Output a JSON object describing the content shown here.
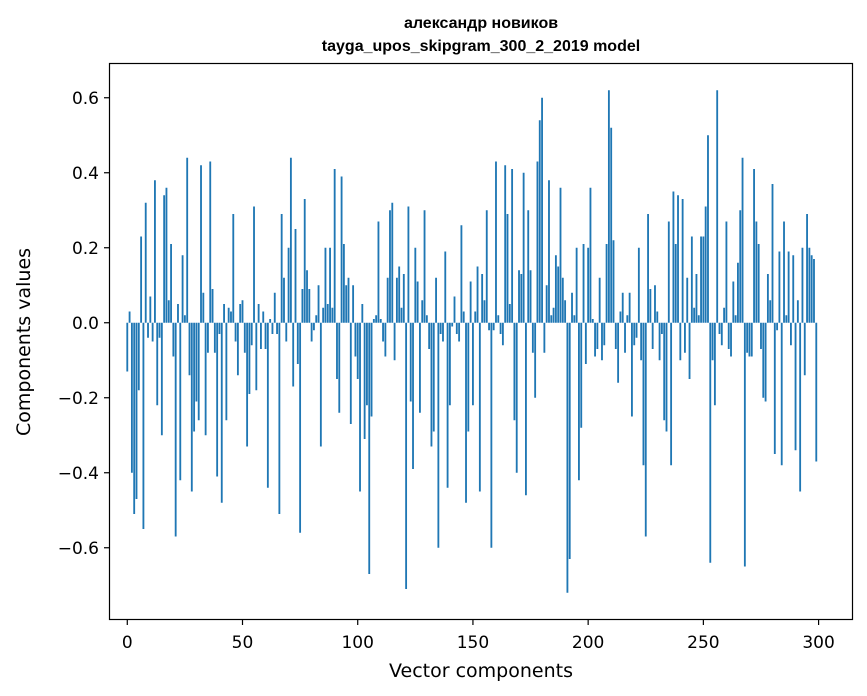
{
  "chart_data": {
    "type": "bar",
    "title_line1": "александр новиков",
    "title_line2": "tayga_upos_skipgram_300_2_2019 model",
    "xlabel": "Vector components",
    "ylabel": "Components values",
    "xlim": [
      -7.5,
      314.5
    ],
    "ylim": [
      -0.79,
      0.69
    ],
    "x_ticks": [
      0,
      50,
      100,
      150,
      200,
      250,
      300
    ],
    "x_tick_labels": [
      "0",
      "50",
      "100",
      "150",
      "200",
      "250",
      "300"
    ],
    "y_ticks": [
      -0.6,
      -0.4,
      -0.2,
      0.0,
      0.2,
      0.4,
      0.6
    ],
    "y_tick_labels": [
      "−0.6",
      "−0.4",
      "−0.2",
      "0.0",
      "0.2",
      "0.4",
      "0.6"
    ],
    "bar_color": "#1f77b4",
    "grid": false,
    "values": [
      -0.13,
      0.03,
      -0.4,
      -0.51,
      -0.47,
      -0.18,
      0.23,
      -0.55,
      0.32,
      -0.04,
      0.07,
      -0.05,
      0.38,
      -0.22,
      -0.04,
      -0.3,
      0.34,
      0.36,
      0.06,
      0.21,
      -0.09,
      -0.57,
      0.05,
      -0.42,
      0.18,
      0.02,
      0.44,
      -0.14,
      -0.45,
      -0.29,
      -0.21,
      -0.26,
      0.42,
      0.08,
      -0.3,
      -0.08,
      0.43,
      0.09,
      -0.08,
      -0.41,
      -0.03,
      -0.48,
      0.05,
      -0.26,
      0.04,
      0.03,
      0.29,
      -0.05,
      -0.14,
      0.05,
      0.06,
      -0.08,
      -0.33,
      -0.19,
      -0.06,
      0.31,
      -0.18,
      0.05,
      -0.07,
      0.03,
      -0.07,
      -0.44,
      0.01,
      -0.03,
      0.08,
      -0.03,
      -0.51,
      0.29,
      0.12,
      -0.05,
      0.2,
      0.44,
      -0.17,
      0.25,
      -0.11,
      -0.56,
      0.09,
      0.33,
      0.14,
      0.09,
      -0.05,
      -0.02,
      0.02,
      0.1,
      -0.33,
      0.04,
      0.2,
      0.05,
      0.2,
      0.04,
      0.41,
      -0.15,
      -0.24,
      0.39,
      0.21,
      0.1,
      0.12,
      -0.27,
      0.1,
      -0.09,
      -0.15,
      -0.45,
      0.05,
      -0.31,
      -0.22,
      -0.67,
      -0.25,
      0.01,
      0.02,
      0.27,
      0.01,
      -0.05,
      -0.09,
      0.12,
      0.3,
      0.32,
      -0.1,
      0.12,
      0.15,
      0.04,
      0.13,
      -0.71,
      0.31,
      -0.21,
      -0.39,
      0.2,
      0.11,
      -0.24,
      0.06,
      0.3,
      0.02,
      -0.07,
      -0.33,
      -0.29,
      0.12,
      -0.6,
      -0.03,
      -0.05,
      0.19,
      -0.44,
      -0.22,
      -0.01,
      0.07,
      -0.03,
      -0.05,
      0.26,
      0.03,
      -0.48,
      -0.29,
      0.11,
      -0.22,
      0.03,
      0.15,
      -0.45,
      0.13,
      0.06,
      0.3,
      -0.02,
      -0.6,
      -0.02,
      0.43,
      0.02,
      -0.03,
      -0.06,
      0.42,
      0.29,
      0.05,
      0.41,
      -0.26,
      -0.4,
      0.14,
      0.13,
      0.4,
      -0.46,
      0.3,
      0.14,
      -0.08,
      -0.2,
      0.43,
      0.54,
      0.6,
      -0.08,
      0.1,
      0.38,
      0.02,
      0.04,
      0.18,
      0.15,
      0.36,
      0.12,
      0.06,
      -0.72,
      -0.63,
      0.08,
      0.02,
      0.2,
      -0.42,
      -0.28,
      0.21,
      -0.11,
      0.2,
      0.36,
      0.01,
      -0.09,
      -0.07,
      0.12,
      -0.1,
      -0.06,
      0.21,
      0.62,
      0.52,
      0.22,
      -0.07,
      -0.16,
      0.03,
      0.08,
      -0.08,
      0.02,
      0.08,
      -0.25,
      -0.06,
      -0.04,
      0.2,
      -0.1,
      -0.38,
      -0.57,
      0.29,
      0.09,
      -0.07,
      0.1,
      0.03,
      -0.1,
      -0.03,
      -0.26,
      -0.29,
      0.27,
      -0.38,
      0.35,
      0.21,
      0.34,
      -0.1,
      0.33,
      -0.08,
      0.12,
      -0.15,
      0.23,
      0.04,
      0.13,
      0.02,
      0.23,
      0.23,
      0.31,
      0.5,
      -0.64,
      -0.1,
      -0.22,
      0.62,
      -0.03,
      -0.06,
      0.04,
      0.27,
      -0.07,
      -0.09,
      0.11,
      0.02,
      0.16,
      0.3,
      0.44,
      -0.65,
      -0.08,
      -0.09,
      -0.09,
      0.41,
      0.27,
      0.21,
      -0.07,
      -0.2,
      -0.21,
      0.13,
      0.06,
      0.37,
      -0.35,
      -0.02,
      0.19,
      -0.38,
      0.27,
      0.02,
      0.19,
      -0.06,
      0.18,
      -0.34,
      0.06,
      -0.45,
      0.2,
      -0.14,
      0.29,
      0.2,
      0.18,
      0.17,
      -0.37
    ]
  }
}
